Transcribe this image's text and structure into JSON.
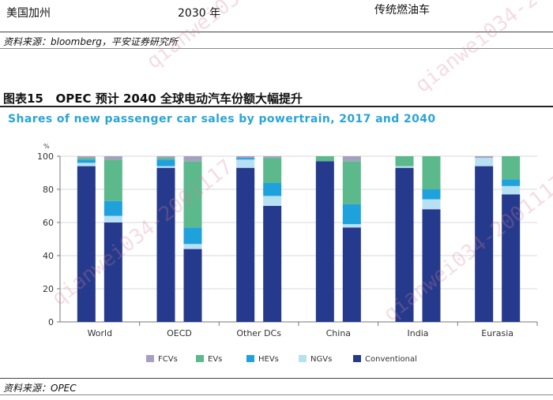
{
  "top_table": {
    "col1": "美国加州",
    "col2": "2030 年",
    "col3": "传统燃油车"
  },
  "source_top": "资料来源：bloomberg，平安证券研究所",
  "figure": {
    "label": "图表15",
    "title": "OPEC 预计 2040 全球电动汽车份额大幅提升"
  },
  "source_bottom": "资料来源：OPEC",
  "watermark": "qianwei034-2001117",
  "colors": {
    "FCVs": "#a89fc0",
    "EVs": "#5bb98c",
    "HEVs": "#1fa2dc",
    "NGVs": "#b7e0f2",
    "Conventional": "#253a8c"
  },
  "chart_data": {
    "type": "bar",
    "stacked": true,
    "title": "Shares of new passenger car sales by powertrain, 2017 and 2040",
    "ylabel": "%",
    "ylim": [
      0,
      100
    ],
    "yticks": [
      0,
      20,
      40,
      60,
      80,
      100
    ],
    "categories": [
      "World",
      "OECD",
      "Other DCs",
      "China",
      "India",
      "Eurasia"
    ],
    "years": [
      "2017",
      "2040"
    ],
    "legend": [
      "FCVs",
      "EVs",
      "HEVs",
      "NGVs",
      "Conventional"
    ],
    "stack_order": [
      "Conventional",
      "NGVs",
      "HEVs",
      "EVs",
      "FCVs"
    ],
    "bars": [
      {
        "category": "World",
        "year": "2017",
        "Conventional": 94,
        "NGVs": 2,
        "HEVs": 2,
        "EVs": 1,
        "FCVs": 1
      },
      {
        "category": "World",
        "year": "2040",
        "Conventional": 60,
        "NGVs": 4,
        "HEVs": 9,
        "EVs": 25,
        "FCVs": 2
      },
      {
        "category": "OECD",
        "year": "2017",
        "Conventional": 93,
        "NGVs": 1,
        "HEVs": 4,
        "EVs": 1,
        "FCVs": 1
      },
      {
        "category": "OECD",
        "year": "2040",
        "Conventional": 44,
        "NGVs": 3,
        "HEVs": 10,
        "EVs": 40,
        "FCVs": 3
      },
      {
        "category": "Other DCs",
        "year": "2017",
        "Conventional": 93,
        "NGVs": 5,
        "HEVs": 1,
        "EVs": 0,
        "FCVs": 1
      },
      {
        "category": "Other DCs",
        "year": "2040",
        "Conventional": 70,
        "NGVs": 6,
        "HEVs": 8,
        "EVs": 15,
        "FCVs": 1
      },
      {
        "category": "China",
        "year": "2017",
        "Conventional": 97,
        "NGVs": 0,
        "HEVs": 0,
        "EVs": 3,
        "FCVs": 0
      },
      {
        "category": "China",
        "year": "2040",
        "Conventional": 57,
        "NGVs": 2,
        "HEVs": 12,
        "EVs": 26,
        "FCVs": 3
      },
      {
        "category": "India",
        "year": "2017",
        "Conventional": 93,
        "NGVs": 1,
        "HEVs": 0,
        "EVs": 6,
        "FCVs": 0
      },
      {
        "category": "India",
        "year": "2040",
        "Conventional": 68,
        "NGVs": 6,
        "HEVs": 6,
        "EVs": 20,
        "FCVs": 0
      },
      {
        "category": "Eurasia",
        "year": "2017",
        "Conventional": 94,
        "NGVs": 5,
        "HEVs": 0,
        "EVs": 0,
        "FCVs": 1
      },
      {
        "category": "Eurasia",
        "year": "2040",
        "Conventional": 77,
        "NGVs": 5,
        "HEVs": 4,
        "EVs": 14,
        "FCVs": 0
      }
    ]
  }
}
